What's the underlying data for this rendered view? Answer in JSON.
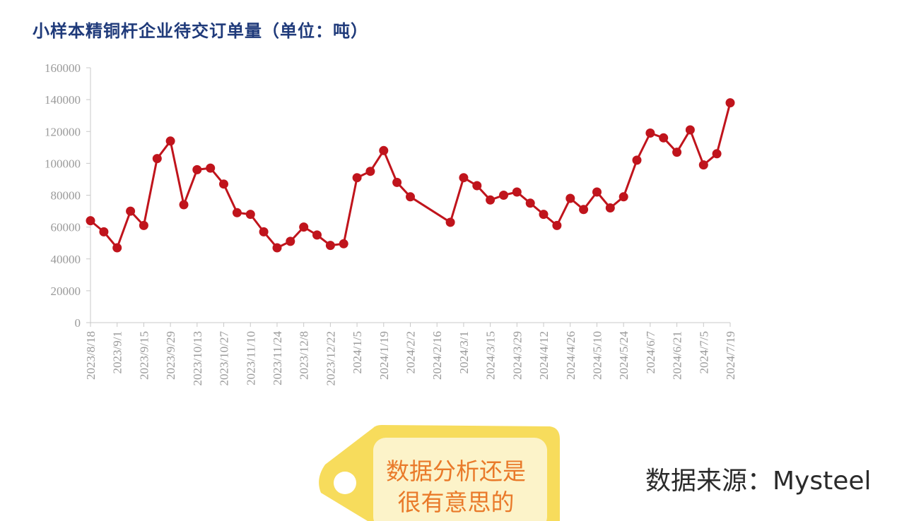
{
  "chart_data": {
    "type": "line",
    "title": "小样本精铜杆企业待交订单量（单位：吨）",
    "ylim": [
      0,
      160000
    ],
    "yticks": [
      0,
      20000,
      40000,
      60000,
      80000,
      100000,
      120000,
      140000,
      160000
    ],
    "xtick_labels": [
      "2023/8/18",
      "2023/9/1",
      "2023/9/15",
      "2023/9/29",
      "2023/10/13",
      "2023/10/27",
      "2023/11/10",
      "2023/11/24",
      "2023/12/8",
      "2023/12/22",
      "2024/1/5",
      "2024/1/19",
      "2024/2/2",
      "2024/2/16",
      "2024/3/1",
      "2024/3/15",
      "2024/3/29",
      "2024/4/12",
      "2024/4/26",
      "2024/5/10",
      "2024/5/24",
      "2024/6/7",
      "2024/6/21",
      "2024/7/5",
      "2024/7/19"
    ],
    "color": "#c0141c",
    "grid": false,
    "points": [
      {
        "x": "2023-08-18",
        "y": 64000
      },
      {
        "x": "2023-08-25",
        "y": 57000
      },
      {
        "x": "2023-09-01",
        "y": 47000
      },
      {
        "x": "2023-09-08",
        "y": 70000
      },
      {
        "x": "2023-09-15",
        "y": 61000
      },
      {
        "x": "2023-09-22",
        "y": 103000
      },
      {
        "x": "2023-09-29",
        "y": 114000
      },
      {
        "x": "2023-10-06",
        "y": 74000
      },
      {
        "x": "2023-10-13",
        "y": 96000
      },
      {
        "x": "2023-10-20",
        "y": 97000
      },
      {
        "x": "2023-10-27",
        "y": 87000
      },
      {
        "x": "2023-11-03",
        "y": 69000
      },
      {
        "x": "2023-11-10",
        "y": 68000
      },
      {
        "x": "2023-11-17",
        "y": 57000
      },
      {
        "x": "2023-11-24",
        "y": 47000
      },
      {
        "x": "2023-12-01",
        "y": 51000
      },
      {
        "x": "2023-12-08",
        "y": 60000
      },
      {
        "x": "2023-12-15",
        "y": 55000
      },
      {
        "x": "2023-12-22",
        "y": 48500
      },
      {
        "x": "2023-12-29",
        "y": 49500
      },
      {
        "x": "2024-01-05",
        "y": 91000
      },
      {
        "x": "2024-01-12",
        "y": 95000
      },
      {
        "x": "2024-01-19",
        "y": 108000
      },
      {
        "x": "2024-01-26",
        "y": 88000
      },
      {
        "x": "2024-02-02",
        "y": 79000
      },
      {
        "x": "2024-02-23",
        "y": 63000
      },
      {
        "x": "2024-03-01",
        "y": 91000
      },
      {
        "x": "2024-03-08",
        "y": 86000
      },
      {
        "x": "2024-03-15",
        "y": 77000
      },
      {
        "x": "2024-03-22",
        "y": 80000
      },
      {
        "x": "2024-03-29",
        "y": 82000
      },
      {
        "x": "2024-04-05",
        "y": 75000
      },
      {
        "x": "2024-04-12",
        "y": 68000
      },
      {
        "x": "2024-04-19",
        "y": 61000
      },
      {
        "x": "2024-04-26",
        "y": 78000
      },
      {
        "x": "2024-05-03",
        "y": 71000
      },
      {
        "x": "2024-05-10",
        "y": 82000
      },
      {
        "x": "2024-05-17",
        "y": 72000
      },
      {
        "x": "2024-05-24",
        "y": 79000
      },
      {
        "x": "2024-05-31",
        "y": 102000
      },
      {
        "x": "2024-06-07",
        "y": 119000
      },
      {
        "x": "2024-06-14",
        "y": 116000
      },
      {
        "x": "2024-06-21",
        "y": 107000
      },
      {
        "x": "2024-06-28",
        "y": 121000
      },
      {
        "x": "2024-07-05",
        "y": 99000
      },
      {
        "x": "2024-07-12",
        "y": 106000
      },
      {
        "x": "2024-07-19",
        "y": 138000
      }
    ]
  },
  "source_note": "数据来源：Mysteel",
  "tag": {
    "line1": "数据分析还是",
    "line2": "很有意思的",
    "colors": {
      "body": "#f7dc5c",
      "inner": "#fcf3c9",
      "text": "#e97a2a"
    }
  }
}
